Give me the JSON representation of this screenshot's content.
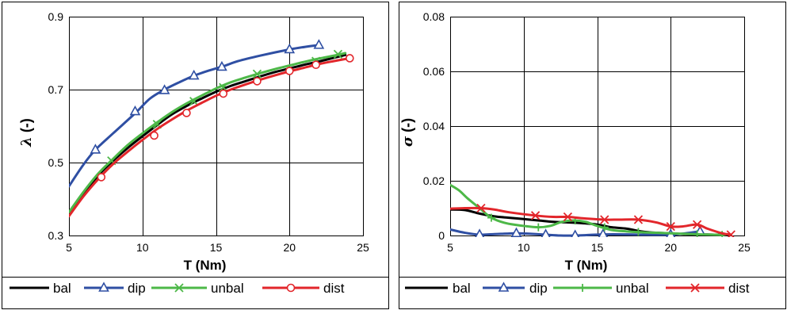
{
  "chart_data": [
    {
      "type": "line",
      "xlabel": "T (Nm)",
      "ylabel_symbol": "λ",
      "ylabel_suffix": " (-)",
      "xlim": [
        5,
        25
      ],
      "ylim": [
        0.3,
        0.9
      ],
      "xticks": [
        5,
        10,
        15,
        20,
        25
      ],
      "xtick_labels": [
        "5",
        "10",
        "15",
        "20",
        "25"
      ],
      "yticks": [
        0.3,
        0.5,
        0.7,
        0.9
      ],
      "ytick_labels": [
        "0.3",
        "0.5",
        "0.7",
        "0.9"
      ],
      "grid": true,
      "legend_position": "bottom",
      "series": [
        {
          "name": "bal",
          "color": "#000000",
          "marker": "none",
          "x": [
            5,
            6,
            7,
            8,
            9,
            10,
            11,
            12,
            13,
            14,
            15,
            16,
            17,
            18,
            19,
            20,
            21,
            22,
            23,
            23.8
          ],
          "y": [
            0.357,
            0.415,
            0.465,
            0.505,
            0.54,
            0.572,
            0.603,
            0.632,
            0.655,
            0.675,
            0.694,
            0.71,
            0.723,
            0.736,
            0.748,
            0.758,
            0.768,
            0.777,
            0.787,
            0.795
          ],
          "marker_x": [],
          "marker_y": []
        },
        {
          "name": "dip",
          "color": "#2f4fa3",
          "marker": "triangle",
          "x": [
            5,
            6,
            6.8,
            8,
            9.5,
            10.5,
            11.5,
            12.5,
            13.5,
            14.5,
            15.5,
            16.5,
            18,
            20,
            21.2,
            22
          ],
          "y": [
            0.435,
            0.495,
            0.535,
            0.58,
            0.635,
            0.675,
            0.7,
            0.72,
            0.738,
            0.752,
            0.764,
            0.778,
            0.793,
            0.81,
            0.818,
            0.822
          ],
          "marker_x": [
            6.8,
            9.5,
            11.5,
            13.5,
            15.4,
            20,
            22
          ],
          "marker_y": [
            0.535,
            0.64,
            0.698,
            0.738,
            0.762,
            0.81,
            0.822
          ]
        },
        {
          "name": "unbal",
          "color": "#4db848",
          "marker": "x",
          "x": [
            5,
            6,
            7,
            8,
            9,
            10,
            11,
            12,
            13,
            14,
            15,
            16,
            17,
            18,
            19,
            20,
            21,
            22,
            23,
            23.8
          ],
          "y": [
            0.364,
            0.42,
            0.47,
            0.51,
            0.548,
            0.58,
            0.61,
            0.638,
            0.662,
            0.683,
            0.703,
            0.72,
            0.733,
            0.745,
            0.756,
            0.766,
            0.776,
            0.785,
            0.793,
            0.8
          ],
          "marker_x": [
            7.9,
            11,
            13.5,
            15.5,
            17.8,
            21.8,
            23.3
          ],
          "marker_y": [
            0.505,
            0.605,
            0.668,
            0.706,
            0.743,
            0.778,
            0.797
          ]
        },
        {
          "name": "dist",
          "color": "#e2262b",
          "marker": "circle",
          "x": [
            5,
            6,
            7,
            8,
            9,
            10,
            11,
            12,
            13,
            14,
            15,
            16,
            17,
            18,
            19,
            20,
            21,
            22,
            23,
            24.1
          ],
          "y": [
            0.353,
            0.408,
            0.455,
            0.496,
            0.53,
            0.562,
            0.592,
            0.618,
            0.642,
            0.663,
            0.683,
            0.7,
            0.714,
            0.727,
            0.739,
            0.75,
            0.76,
            0.77,
            0.778,
            0.786
          ],
          "marker_x": [
            7.2,
            10.8,
            13,
            15.5,
            17.8,
            20,
            21.8,
            24.1
          ],
          "marker_y": [
            0.46,
            0.574,
            0.636,
            0.689,
            0.723,
            0.751,
            0.768,
            0.786
          ]
        }
      ]
    },
    {
      "type": "line",
      "xlabel": "T (Nm)",
      "ylabel_symbol": "σ",
      "ylabel_suffix": " (-)",
      "xlim": [
        5,
        25
      ],
      "ylim": [
        0,
        0.08
      ],
      "xticks": [
        5,
        10,
        15,
        20,
        25
      ],
      "xtick_labels": [
        "5",
        "10",
        "15",
        "20",
        "25"
      ],
      "yticks": [
        0,
        0.02,
        0.04,
        0.06,
        0.08
      ],
      "ytick_labels": [
        "0",
        "0.02",
        "0.04",
        "0.06",
        "0.08"
      ],
      "grid": true,
      "legend_position": "bottom",
      "series": [
        {
          "name": "bal",
          "color": "#000000",
          "marker": "none",
          "x": [
            5,
            6,
            7,
            8,
            9,
            10,
            11,
            12,
            13,
            14,
            15,
            16,
            17,
            18,
            19,
            20,
            21,
            22,
            23,
            24
          ],
          "y": [
            0.0095,
            0.0093,
            0.008,
            0.007,
            0.0065,
            0.006,
            0.0055,
            0.005,
            0.0048,
            0.0045,
            0.004,
            0.003,
            0.0025,
            0.0015,
            0.001,
            0.0008,
            0.0005,
            0.0004,
            0.0003,
            0.0002
          ],
          "marker_x": [],
          "marker_y": []
        },
        {
          "name": "dip",
          "color": "#2f4fa3",
          "marker": "triangle",
          "x": [
            5,
            6,
            7,
            8,
            9.5,
            10.5,
            11.5,
            12.5,
            13.5,
            14.5,
            15.5,
            17,
            18,
            20,
            21,
            22
          ],
          "y": [
            0.0022,
            0.001,
            0.0003,
            0.0005,
            0.0008,
            0.0006,
            0.0003,
            0.0,
            0.0,
            0.0002,
            0.0004,
            0.0004,
            0.0003,
            0.0003,
            0.0008,
            0.0015
          ],
          "marker_x": [
            7,
            9.5,
            11.5,
            13.5,
            15.4,
            20,
            22
          ],
          "marker_y": [
            0.0003,
            0.0008,
            0.0003,
            0.0,
            0.0004,
            0.0003,
            0.0015
          ]
        },
        {
          "name": "unbal",
          "color": "#4db848",
          "marker": "plus",
          "x": [
            5,
            5.6,
            6.2,
            7,
            7.8,
            8.8,
            10,
            11,
            11.8,
            12.6,
            13.4,
            14.2,
            15,
            16,
            17,
            18,
            19,
            20,
            21,
            22,
            23,
            23.6
          ],
          "y": [
            0.0185,
            0.0165,
            0.0135,
            0.01,
            0.0065,
            0.0045,
            0.0035,
            0.003,
            0.0035,
            0.005,
            0.0055,
            0.005,
            0.0035,
            0.002,
            0.0015,
            0.0012,
            0.001,
            0.0008,
            0.0006,
            0.0004,
            0.0003,
            0.0002
          ],
          "marker_x": [
            7.8,
            11,
            13.5,
            15.5,
            17.8,
            21.8,
            23.5
          ],
          "marker_y": [
            0.0065,
            0.003,
            0.0055,
            0.003,
            0.0013,
            0.0005,
            0.0002
          ]
        },
        {
          "name": "dist",
          "color": "#e2262b",
          "marker": "x",
          "x": [
            5,
            6,
            7.1,
            8,
            9,
            10.8,
            12,
            13,
            14,
            15.5,
            16.5,
            17.8,
            19,
            20,
            20.8,
            21.8,
            22.5,
            23.5,
            24.1
          ],
          "y": [
            0.0098,
            0.01,
            0.01,
            0.0095,
            0.0085,
            0.0073,
            0.0068,
            0.0068,
            0.0063,
            0.0058,
            0.0058,
            0.0058,
            0.0048,
            0.0033,
            0.0033,
            0.004,
            0.0025,
            0.0008,
            0.0003
          ],
          "marker_x": [
            7.1,
            10.8,
            13,
            15.5,
            17.8,
            20,
            21.8,
            24.1
          ],
          "marker_y": [
            0.01,
            0.0073,
            0.0068,
            0.0058,
            0.0058,
            0.0033,
            0.004,
            0.0003
          ]
        }
      ]
    }
  ]
}
